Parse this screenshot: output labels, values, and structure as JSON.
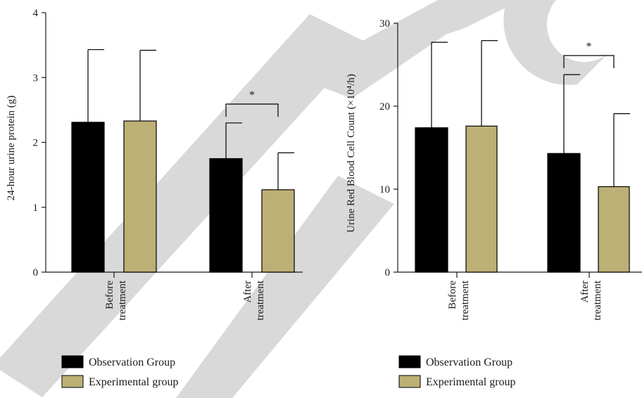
{
  "watermark": {
    "text": "RETRACTED",
    "color": "#d9d9d9"
  },
  "colors": {
    "observation": "#000000",
    "experimental": "#bdb076",
    "axis": "#1a1a1a"
  },
  "chart_data": [
    {
      "type": "bar",
      "title": "",
      "ylabel": "24-hour urine protein (g)",
      "ylim": [
        0,
        4
      ],
      "yticks": [
        "0",
        "1",
        "2",
        "3",
        "4"
      ],
      "categories": [
        [
          "Before",
          "treatment"
        ],
        [
          "After",
          "treatment"
        ]
      ],
      "series": [
        {
          "name": "Observation Group",
          "values": [
            2.31,
            1.75
          ],
          "errors": [
            1.12,
            0.55
          ],
          "color": "#000000"
        },
        {
          "name": "Experimental group",
          "values": [
            2.33,
            1.27
          ],
          "errors": [
            1.09,
            0.57
          ],
          "color": "#bdb076"
        }
      ],
      "annotations": [
        {
          "category_index": 1,
          "text": "*"
        }
      ],
      "grid": false,
      "legend_position": "bottom-left"
    },
    {
      "type": "bar",
      "title": "",
      "ylabel": "Urine Red Blood Cell Count (×10⁴/h)",
      "ylim": [
        0,
        30
      ],
      "yticks": [
        "0",
        "10",
        "20",
        "30"
      ],
      "categories": [
        [
          "Before",
          "treatment"
        ],
        [
          "After",
          "treatment"
        ]
      ],
      "series": [
        {
          "name": "Observation Group",
          "values": [
            17.4,
            14.3
          ],
          "errors": [
            10.3,
            9.5
          ],
          "color": "#000000"
        },
        {
          "name": "Experimental group",
          "values": [
            17.6,
            10.3
          ],
          "errors": [
            10.3,
            8.8
          ],
          "color": "#bdb076"
        }
      ],
      "annotations": [
        {
          "category_index": 1,
          "text": "*"
        }
      ],
      "grid": false,
      "legend_position": "bottom-left"
    }
  ]
}
